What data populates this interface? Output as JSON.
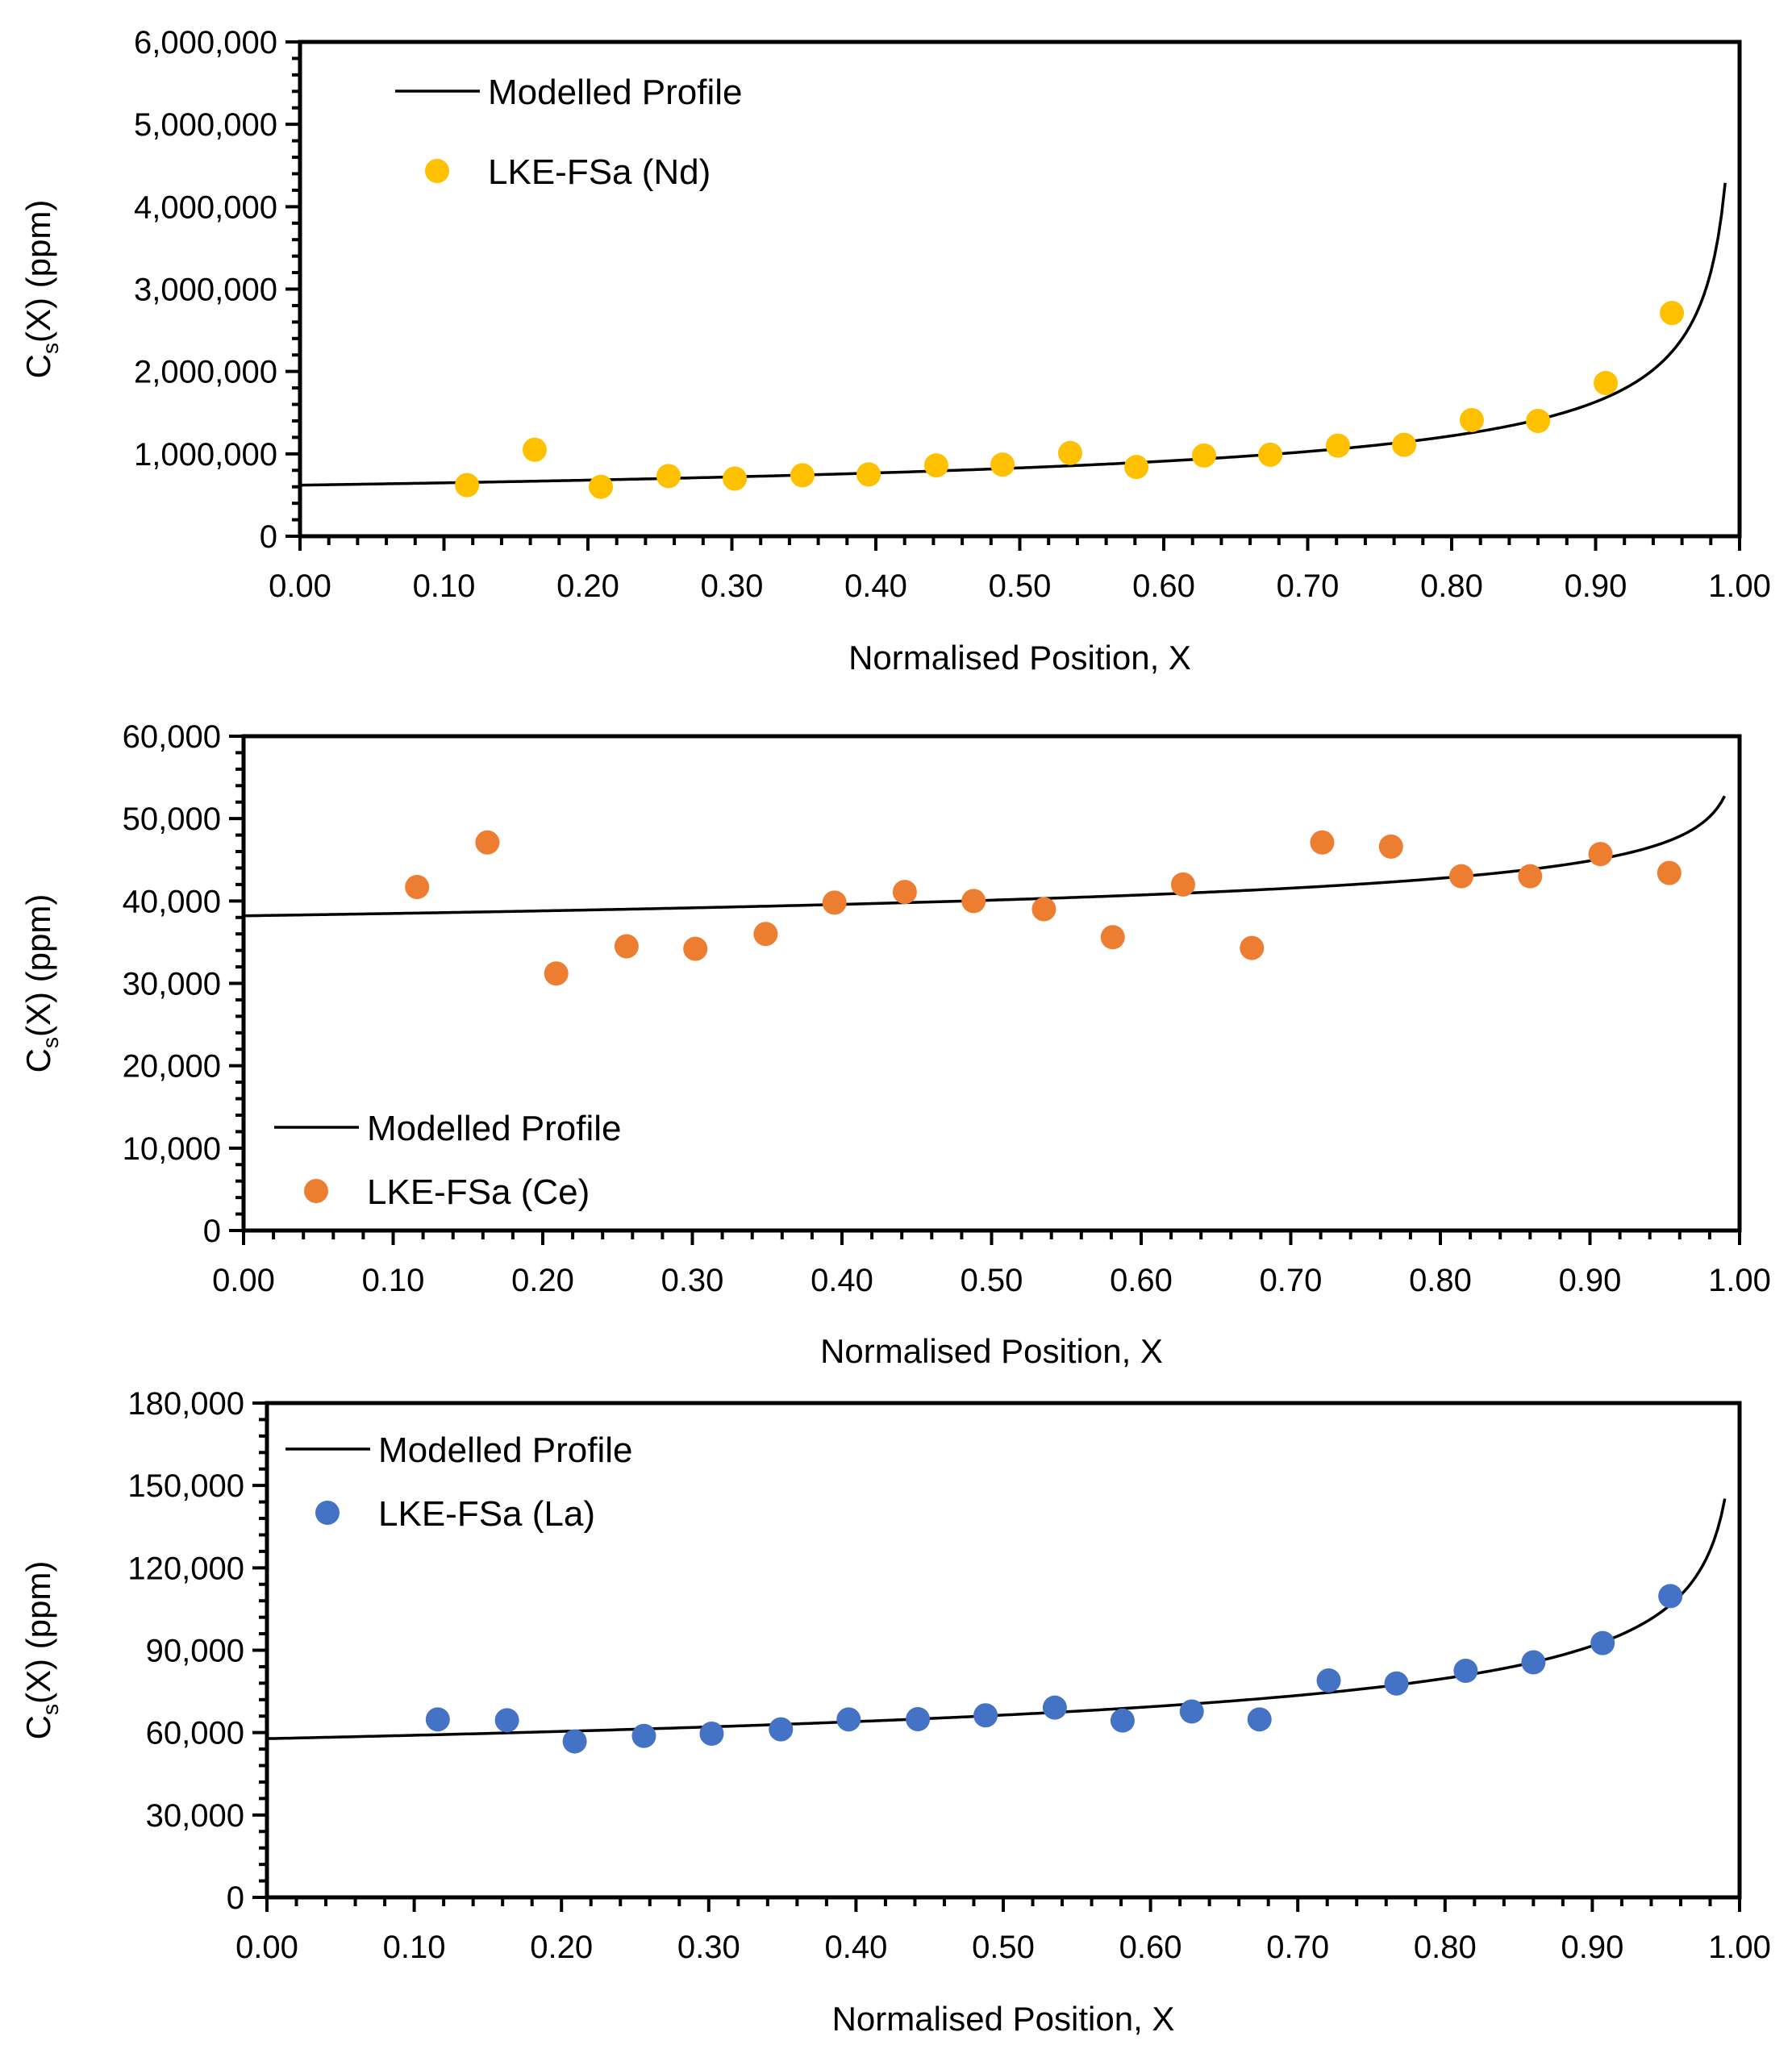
{
  "chart_data": [
    {
      "type": "scatter",
      "title": "",
      "xlabel": "Normalised Position, X",
      "ylabel_main": "C",
      "ylabel_sub": "s",
      "ylabel_rest": "(X) (ppm)",
      "xlim": [
        0,
        1
      ],
      "ylim": [
        0,
        6000000
      ],
      "x_ticks": [
        0,
        0.1,
        0.2,
        0.3,
        0.4,
        0.5,
        0.6,
        0.7,
        0.8,
        0.9,
        1.0
      ],
      "x_tick_labels": [
        "0.00",
        "0.10",
        "0.20",
        "0.30",
        "0.40",
        "0.50",
        "0.60",
        "0.70",
        "0.80",
        "0.90",
        "1.00"
      ],
      "y_ticks": [
        0,
        1000000,
        2000000,
        3000000,
        4000000,
        5000000,
        6000000
      ],
      "y_tick_labels": [
        "0",
        "1,000,000",
        "2,000,000",
        "3,000,000",
        "4,000,000",
        "5,000,000",
        "6,000,000"
      ],
      "legend_position": "top-left",
      "model": {
        "name": "Modelled Profile",
        "c0": 620000,
        "k": 0.58,
        "x_max": 0.99
      },
      "series": [
        {
          "name": "LKE-FSa (Nd)",
          "color": "#FFC000",
          "x": [
            0.116,
            0.163,
            0.209,
            0.256,
            0.302,
            0.349,
            0.395,
            0.442,
            0.488,
            0.535,
            0.581,
            0.628,
            0.674,
            0.721,
            0.767,
            0.814,
            0.86,
            0.907,
            0.953
          ],
          "y": [
            620000,
            1050000,
            600000,
            730000,
            700000,
            740000,
            750000,
            860000,
            870000,
            1010000,
            840000,
            980000,
            990000,
            1100000,
            1110000,
            1410000,
            1400000,
            1860000,
            2710000
          ]
        }
      ]
    },
    {
      "type": "scatter",
      "title": "",
      "xlabel": "Normalised Position, X",
      "ylabel_main": "C",
      "ylabel_sub": "s",
      "ylabel_rest": "(X) (ppm)",
      "xlim": [
        0,
        1
      ],
      "ylim": [
        0,
        60000
      ],
      "x_ticks": [
        0,
        0.1,
        0.2,
        0.3,
        0.4,
        0.5,
        0.6,
        0.7,
        0.8,
        0.9,
        1.0
      ],
      "x_tick_labels": [
        "0.00",
        "0.10",
        "0.20",
        "0.30",
        "0.40",
        "0.50",
        "0.60",
        "0.70",
        "0.80",
        "0.90",
        "1.00"
      ],
      "y_ticks": [
        0,
        10000,
        20000,
        30000,
        40000,
        50000,
        60000
      ],
      "y_tick_labels": [
        "0",
        "10,000",
        "20,000",
        "30,000",
        "40,000",
        "50,000",
        "60,000"
      ],
      "legend_position": "bottom-left",
      "model": {
        "name": "Modelled Profile",
        "c0": 38200,
        "k": 0.93,
        "x_max": 0.99
      },
      "series": [
        {
          "name": "LKE-FSa (Ce)",
          "color": "#ED7D31",
          "x": [
            0.116,
            0.163,
            0.209,
            0.256,
            0.302,
            0.349,
            0.395,
            0.442,
            0.488,
            0.535,
            0.581,
            0.628,
            0.674,
            0.721,
            0.767,
            0.814,
            0.86,
            0.907,
            0.953
          ],
          "y": [
            41700,
            47100,
            31200,
            34500,
            34200,
            36000,
            39800,
            41100,
            40000,
            39000,
            35600,
            42000,
            34300,
            47100,
            46600,
            43000,
            43000,
            45700,
            43400
          ]
        }
      ]
    },
    {
      "type": "scatter",
      "title": "",
      "xlabel": "Normalised Position, X",
      "ylabel_main": "C",
      "ylabel_sub": "s",
      "ylabel_rest": "(X) (ppm)",
      "xlim": [
        0,
        1
      ],
      "ylim": [
        0,
        180000
      ],
      "x_ticks": [
        0,
        0.1,
        0.2,
        0.3,
        0.4,
        0.5,
        0.6,
        0.7,
        0.8,
        0.9,
        1.0
      ],
      "x_tick_labels": [
        "0.00",
        "0.10",
        "0.20",
        "0.30",
        "0.40",
        "0.50",
        "0.60",
        "0.70",
        "0.80",
        "0.90",
        "1.00"
      ],
      "y_ticks": [
        0,
        30000,
        60000,
        90000,
        120000,
        150000,
        180000
      ],
      "y_tick_labels": [
        "0",
        "30,000",
        "60,000",
        "90,000",
        "120,000",
        "150,000",
        "180,000"
      ],
      "legend_position": "top-left",
      "model": {
        "name": "Modelled Profile",
        "c0": 57800,
        "k": 0.8,
        "x_max": 0.99
      },
      "series": [
        {
          "name": "LKE-FSa (La)",
          "color": "#4472C4",
          "x": [
            0.116,
            0.163,
            0.209,
            0.256,
            0.302,
            0.349,
            0.395,
            0.442,
            0.488,
            0.535,
            0.581,
            0.628,
            0.674,
            0.721,
            0.767,
            0.814,
            0.86,
            0.907,
            0.953
          ],
          "y": [
            64800,
            64500,
            56800,
            58800,
            59600,
            61200,
            64800,
            64900,
            66300,
            69100,
            64400,
            67700,
            64800,
            79000,
            77900,
            82500,
            85600,
            92600,
            109700
          ]
        }
      ]
    }
  ]
}
